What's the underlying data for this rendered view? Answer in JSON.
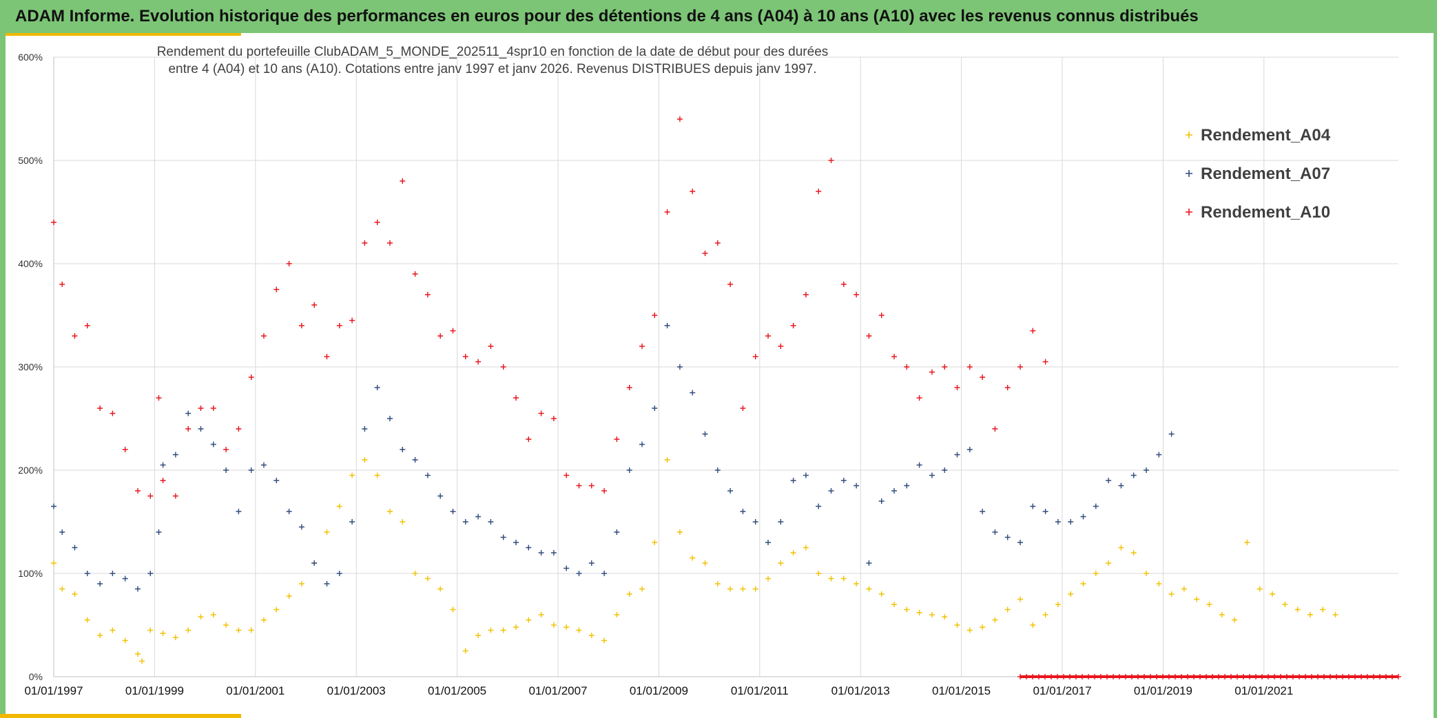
{
  "header": {
    "title": "ADAM Informe. Evolution historique des performances en euros pour des détentions de 4 ans (A04) à 10 ans (A10) avec les revenus connus distribués"
  },
  "colors": {
    "header_bg": "#7cc576",
    "accent": "#f0b800",
    "A04": "#f2c100",
    "A07": "#2f4b7c",
    "A10": "#e8141c"
  },
  "chart_data": {
    "type": "scatter",
    "title_lines": [
      "Rendement du portefeuille ClubADAM_5_MONDE_202511_4spr10  en fonction de la date de début pour des durées",
      "entre 4 (A04) et 10 ans (A10). Cotations entre janv 1997 et janv 2026. Revenus DISTRIBUES depuis janv 1997."
    ],
    "xlabel": "",
    "ylabel": "",
    "xlim": [
      "1997-01-01",
      "2023-09-01"
    ],
    "ylim": [
      0,
      600
    ],
    "y_unit": "%",
    "y_ticks": [
      "0%",
      "100%",
      "200%",
      "300%",
      "400%",
      "500%",
      "600%"
    ],
    "x_ticks": [
      "01/01/1997",
      "01/01/1999",
      "01/01/2001",
      "01/01/2003",
      "01/01/2005",
      "01/01/2007",
      "01/01/2009",
      "01/01/2011",
      "01/01/2013",
      "01/01/2015",
      "01/01/2017",
      "01/01/2019",
      "01/01/2021"
    ],
    "grid": true,
    "legend_position": "top-right",
    "marker": "+",
    "series": [
      {
        "name": "Rendement_A04",
        "color": "#f2c100",
        "points": [
          [
            "1997-01",
            110
          ],
          [
            "1997-03",
            85
          ],
          [
            "1997-06",
            80
          ],
          [
            "1997-09",
            55
          ],
          [
            "1997-12",
            40
          ],
          [
            "1998-03",
            45
          ],
          [
            "1998-06",
            35
          ],
          [
            "1998-09",
            22
          ],
          [
            "1998-10",
            15
          ],
          [
            "1998-12",
            45
          ],
          [
            "1999-03",
            42
          ],
          [
            "1999-06",
            38
          ],
          [
            "1999-09",
            45
          ],
          [
            "1999-12",
            58
          ],
          [
            "2000-03",
            60
          ],
          [
            "2000-06",
            50
          ],
          [
            "2000-09",
            45
          ],
          [
            "2000-12",
            45
          ],
          [
            "2001-03",
            55
          ],
          [
            "2001-06",
            65
          ],
          [
            "2001-09",
            78
          ],
          [
            "2001-12",
            90
          ],
          [
            "2002-03",
            110
          ],
          [
            "2002-06",
            140
          ],
          [
            "2002-09",
            165
          ],
          [
            "2002-12",
            195
          ],
          [
            "2003-03",
            210
          ],
          [
            "2003-06",
            195
          ],
          [
            "2003-09",
            160
          ],
          [
            "2003-12",
            150
          ],
          [
            "2004-03",
            100
          ],
          [
            "2004-06",
            95
          ],
          [
            "2004-09",
            85
          ],
          [
            "2004-12",
            65
          ],
          [
            "2005-03",
            25
          ],
          [
            "2005-06",
            40
          ],
          [
            "2005-09",
            45
          ],
          [
            "2005-12",
            45
          ],
          [
            "2006-03",
            48
          ],
          [
            "2006-06",
            55
          ],
          [
            "2006-09",
            60
          ],
          [
            "2006-12",
            50
          ],
          [
            "2007-03",
            48
          ],
          [
            "2007-06",
            45
          ],
          [
            "2007-09",
            40
          ],
          [
            "2007-12",
            35
          ],
          [
            "2008-03",
            60
          ],
          [
            "2008-06",
            80
          ],
          [
            "2008-09",
            85
          ],
          [
            "2008-12",
            130
          ],
          [
            "2009-03",
            210
          ],
          [
            "2009-06",
            140
          ],
          [
            "2009-09",
            115
          ],
          [
            "2009-12",
            110
          ],
          [
            "2010-03",
            90
          ],
          [
            "2010-06",
            85
          ],
          [
            "2010-09",
            85
          ],
          [
            "2010-12",
            85
          ],
          [
            "2011-03",
            95
          ],
          [
            "2011-06",
            110
          ],
          [
            "2011-09",
            120
          ],
          [
            "2011-12",
            125
          ],
          [
            "2012-03",
            100
          ],
          [
            "2012-06",
            95
          ],
          [
            "2012-09",
            95
          ],
          [
            "2012-12",
            90
          ],
          [
            "2013-03",
            85
          ],
          [
            "2013-06",
            80
          ],
          [
            "2013-09",
            70
          ],
          [
            "2013-12",
            65
          ],
          [
            "2014-03",
            62
          ],
          [
            "2014-06",
            60
          ],
          [
            "2014-09",
            58
          ],
          [
            "2014-12",
            50
          ],
          [
            "2015-03",
            45
          ],
          [
            "2015-06",
            48
          ],
          [
            "2015-09",
            55
          ],
          [
            "2015-12",
            65
          ],
          [
            "2016-03",
            75
          ],
          [
            "2016-06",
            50
          ],
          [
            "2016-09",
            60
          ],
          [
            "2016-12",
            70
          ],
          [
            "2017-03",
            80
          ],
          [
            "2017-06",
            90
          ],
          [
            "2017-09",
            100
          ],
          [
            "2017-12",
            110
          ],
          [
            "2018-03",
            125
          ],
          [
            "2018-06",
            120
          ],
          [
            "2018-09",
            100
          ],
          [
            "2018-12",
            90
          ],
          [
            "2019-03",
            80
          ],
          [
            "2019-06",
            85
          ],
          [
            "2019-09",
            75
          ],
          [
            "2019-12",
            70
          ],
          [
            "2020-03",
            60
          ],
          [
            "2020-06",
            55
          ],
          [
            "2020-09",
            130
          ],
          [
            "2020-12",
            85
          ],
          [
            "2021-03",
            80
          ],
          [
            "2021-06",
            70
          ],
          [
            "2021-09",
            65
          ],
          [
            "2021-12",
            60
          ],
          [
            "2022-03",
            65
          ],
          [
            "2022-06",
            60
          ]
        ]
      },
      {
        "name": "Rendement_A07",
        "color": "#2f4b7c",
        "points": [
          [
            "1997-01",
            165
          ],
          [
            "1997-03",
            140
          ],
          [
            "1997-06",
            125
          ],
          [
            "1997-09",
            100
          ],
          [
            "1997-12",
            90
          ],
          [
            "1998-03",
            100
          ],
          [
            "1998-06",
            95
          ],
          [
            "1998-09",
            85
          ],
          [
            "1998-12",
            100
          ],
          [
            "1999-02",
            140
          ],
          [
            "1999-03",
            205
          ],
          [
            "1999-06",
            215
          ],
          [
            "1999-09",
            255
          ],
          [
            "1999-12",
            240
          ],
          [
            "2000-03",
            225
          ],
          [
            "2000-06",
            200
          ],
          [
            "2000-09",
            160
          ],
          [
            "2000-12",
            200
          ],
          [
            "2001-03",
            205
          ],
          [
            "2001-06",
            190
          ],
          [
            "2001-09",
            160
          ],
          [
            "2001-12",
            145
          ],
          [
            "2002-03",
            110
          ],
          [
            "2002-06",
            90
          ],
          [
            "2002-09",
            100
          ],
          [
            "2002-12",
            150
          ],
          [
            "2003-03",
            240
          ],
          [
            "2003-06",
            280
          ],
          [
            "2003-09",
            250
          ],
          [
            "2003-12",
            220
          ],
          [
            "2004-03",
            210
          ],
          [
            "2004-06",
            195
          ],
          [
            "2004-09",
            175
          ],
          [
            "2004-12",
            160
          ],
          [
            "2005-03",
            150
          ],
          [
            "2005-06",
            155
          ],
          [
            "2005-09",
            150
          ],
          [
            "2005-12",
            135
          ],
          [
            "2006-03",
            130
          ],
          [
            "2006-06",
            125
          ],
          [
            "2006-09",
            120
          ],
          [
            "2006-12",
            120
          ],
          [
            "2007-03",
            105
          ],
          [
            "2007-06",
            100
          ],
          [
            "2007-09",
            110
          ],
          [
            "2007-12",
            100
          ],
          [
            "2008-03",
            140
          ],
          [
            "2008-06",
            200
          ],
          [
            "2008-09",
            225
          ],
          [
            "2008-12",
            260
          ],
          [
            "2009-03",
            340
          ],
          [
            "2009-06",
            300
          ],
          [
            "2009-09",
            275
          ],
          [
            "2009-12",
            235
          ],
          [
            "2010-03",
            200
          ],
          [
            "2010-06",
            180
          ],
          [
            "2010-09",
            160
          ],
          [
            "2010-12",
            150
          ],
          [
            "2011-03",
            130
          ],
          [
            "2011-06",
            150
          ],
          [
            "2011-09",
            190
          ],
          [
            "2011-12",
            195
          ],
          [
            "2012-03",
            165
          ],
          [
            "2012-06",
            180
          ],
          [
            "2012-09",
            190
          ],
          [
            "2012-12",
            185
          ],
          [
            "2013-03",
            110
          ],
          [
            "2013-06",
            170
          ],
          [
            "2013-09",
            180
          ],
          [
            "2013-12",
            185
          ],
          [
            "2014-03",
            205
          ],
          [
            "2014-06",
            195
          ],
          [
            "2014-09",
            200
          ],
          [
            "2014-12",
            215
          ],
          [
            "2015-03",
            220
          ],
          [
            "2015-06",
            160
          ],
          [
            "2015-09",
            140
          ],
          [
            "2015-12",
            135
          ],
          [
            "2016-03",
            130
          ],
          [
            "2016-06",
            165
          ],
          [
            "2016-09",
            160
          ],
          [
            "2016-12",
            150
          ],
          [
            "2017-03",
            150
          ],
          [
            "2017-06",
            155
          ],
          [
            "2017-09",
            165
          ],
          [
            "2017-12",
            190
          ],
          [
            "2018-03",
            185
          ],
          [
            "2018-06",
            195
          ],
          [
            "2018-09",
            200
          ],
          [
            "2018-12",
            215
          ],
          [
            "2019-03",
            235
          ]
        ]
      },
      {
        "name": "Rendement_A10",
        "color": "#e8141c",
        "points": [
          [
            "1997-01",
            440
          ],
          [
            "1997-03",
            380
          ],
          [
            "1997-06",
            330
          ],
          [
            "1997-09",
            340
          ],
          [
            "1997-12",
            260
          ],
          [
            "1998-03",
            255
          ],
          [
            "1998-06",
            220
          ],
          [
            "1998-09",
            180
          ],
          [
            "1998-12",
            175
          ],
          [
            "1999-02",
            270
          ],
          [
            "1999-03",
            190
          ],
          [
            "1999-06",
            175
          ],
          [
            "1999-09",
            240
          ],
          [
            "1999-12",
            260
          ],
          [
            "2000-03",
            260
          ],
          [
            "2000-06",
            220
          ],
          [
            "2000-09",
            240
          ],
          [
            "2000-12",
            290
          ],
          [
            "2001-03",
            330
          ],
          [
            "2001-06",
            375
          ],
          [
            "2001-09",
            400
          ],
          [
            "2001-12",
            340
          ],
          [
            "2002-03",
            360
          ],
          [
            "2002-06",
            310
          ],
          [
            "2002-09",
            340
          ],
          [
            "2002-12",
            345
          ],
          [
            "2003-03",
            420
          ],
          [
            "2003-06",
            440
          ],
          [
            "2003-09",
            420
          ],
          [
            "2003-12",
            480
          ],
          [
            "2004-03",
            390
          ],
          [
            "2004-06",
            370
          ],
          [
            "2004-09",
            330
          ],
          [
            "2004-12",
            335
          ],
          [
            "2005-03",
            310
          ],
          [
            "2005-06",
            305
          ],
          [
            "2005-09",
            320
          ],
          [
            "2005-12",
            300
          ],
          [
            "2006-03",
            270
          ],
          [
            "2006-06",
            230
          ],
          [
            "2006-09",
            255
          ],
          [
            "2006-12",
            250
          ],
          [
            "2007-03",
            195
          ],
          [
            "2007-06",
            185
          ],
          [
            "2007-09",
            185
          ],
          [
            "2007-12",
            180
          ],
          [
            "2008-03",
            230
          ],
          [
            "2008-06",
            280
          ],
          [
            "2008-09",
            320
          ],
          [
            "2008-12",
            350
          ],
          [
            "2009-03",
            450
          ],
          [
            "2009-06",
            540
          ],
          [
            "2009-09",
            470
          ],
          [
            "2009-12",
            410
          ],
          [
            "2010-03",
            420
          ],
          [
            "2010-06",
            380
          ],
          [
            "2010-09",
            260
          ],
          [
            "2010-12",
            310
          ],
          [
            "2011-03",
            330
          ],
          [
            "2011-06",
            320
          ],
          [
            "2011-09",
            340
          ],
          [
            "2011-12",
            370
          ],
          [
            "2012-03",
            470
          ],
          [
            "2012-06",
            500
          ],
          [
            "2012-09",
            380
          ],
          [
            "2012-12",
            370
          ],
          [
            "2013-03",
            330
          ],
          [
            "2013-06",
            350
          ],
          [
            "2013-09",
            310
          ],
          [
            "2013-12",
            300
          ],
          [
            "2014-03",
            270
          ],
          [
            "2014-06",
            295
          ],
          [
            "2014-09",
            300
          ],
          [
            "2014-12",
            280
          ],
          [
            "2015-03",
            300
          ],
          [
            "2015-06",
            290
          ],
          [
            "2015-09",
            240
          ],
          [
            "2015-12",
            280
          ],
          [
            "2016-03",
            300
          ],
          [
            "2016-06",
            335
          ],
          [
            "2016-09",
            305
          ]
        ]
      }
    ],
    "flat_segment": {
      "series": "Rendement_A10",
      "color": "#e8141c",
      "from": "2016-03",
      "to": "2023-09",
      "value": 0
    }
  }
}
